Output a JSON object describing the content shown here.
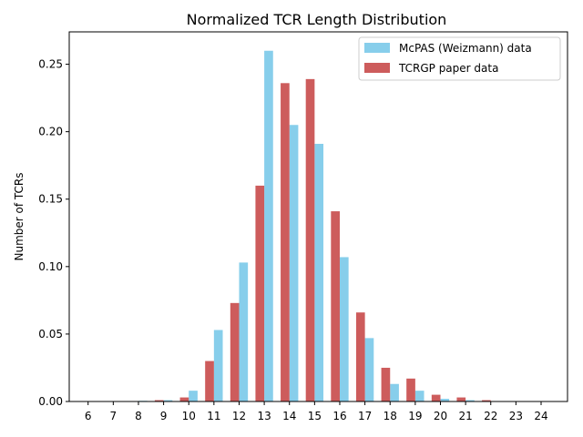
{
  "chart_data": {
    "type": "bar",
    "title": "Normalized TCR Length Distribution",
    "xlabel": "",
    "ylabel": "Number of TCRs",
    "categories": [
      "6",
      "7",
      "8",
      "9",
      "10",
      "11",
      "12",
      "13",
      "14",
      "15",
      "16",
      "17",
      "18",
      "19",
      "20",
      "21",
      "22",
      "23",
      "24"
    ],
    "x": [
      6,
      7,
      8,
      9,
      10,
      11,
      12,
      13,
      14,
      15,
      16,
      17,
      18,
      19,
      20,
      21,
      22,
      23,
      24
    ],
    "ylim": [
      0,
      0.274
    ],
    "yticks": [
      "0.00",
      "0.05",
      "0.10",
      "0.15",
      "0.20",
      "0.25"
    ],
    "ytick_values": [
      0,
      0.05,
      0.1,
      0.15,
      0.2,
      0.25
    ],
    "legend_position": "top-right",
    "grid": false,
    "series": [
      {
        "name": "McPAS (Weizmann) data",
        "color": "#87ceeb",
        "values": [
          0,
          0,
          0.0005,
          0.001,
          0.008,
          0.053,
          0.103,
          0.26,
          0.205,
          0.191,
          0.107,
          0.047,
          0.013,
          0.008,
          0.002,
          0.001,
          0,
          0,
          0
        ]
      },
      {
        "name": "TCRGP paper data",
        "color": "#cd5c5c",
        "values": [
          0,
          0,
          0,
          0.001,
          0.003,
          0.03,
          0.073,
          0.16,
          0.236,
          0.239,
          0.141,
          0.066,
          0.025,
          0.017,
          0.005,
          0.003,
          0.001,
          0,
          0
        ]
      }
    ]
  }
}
